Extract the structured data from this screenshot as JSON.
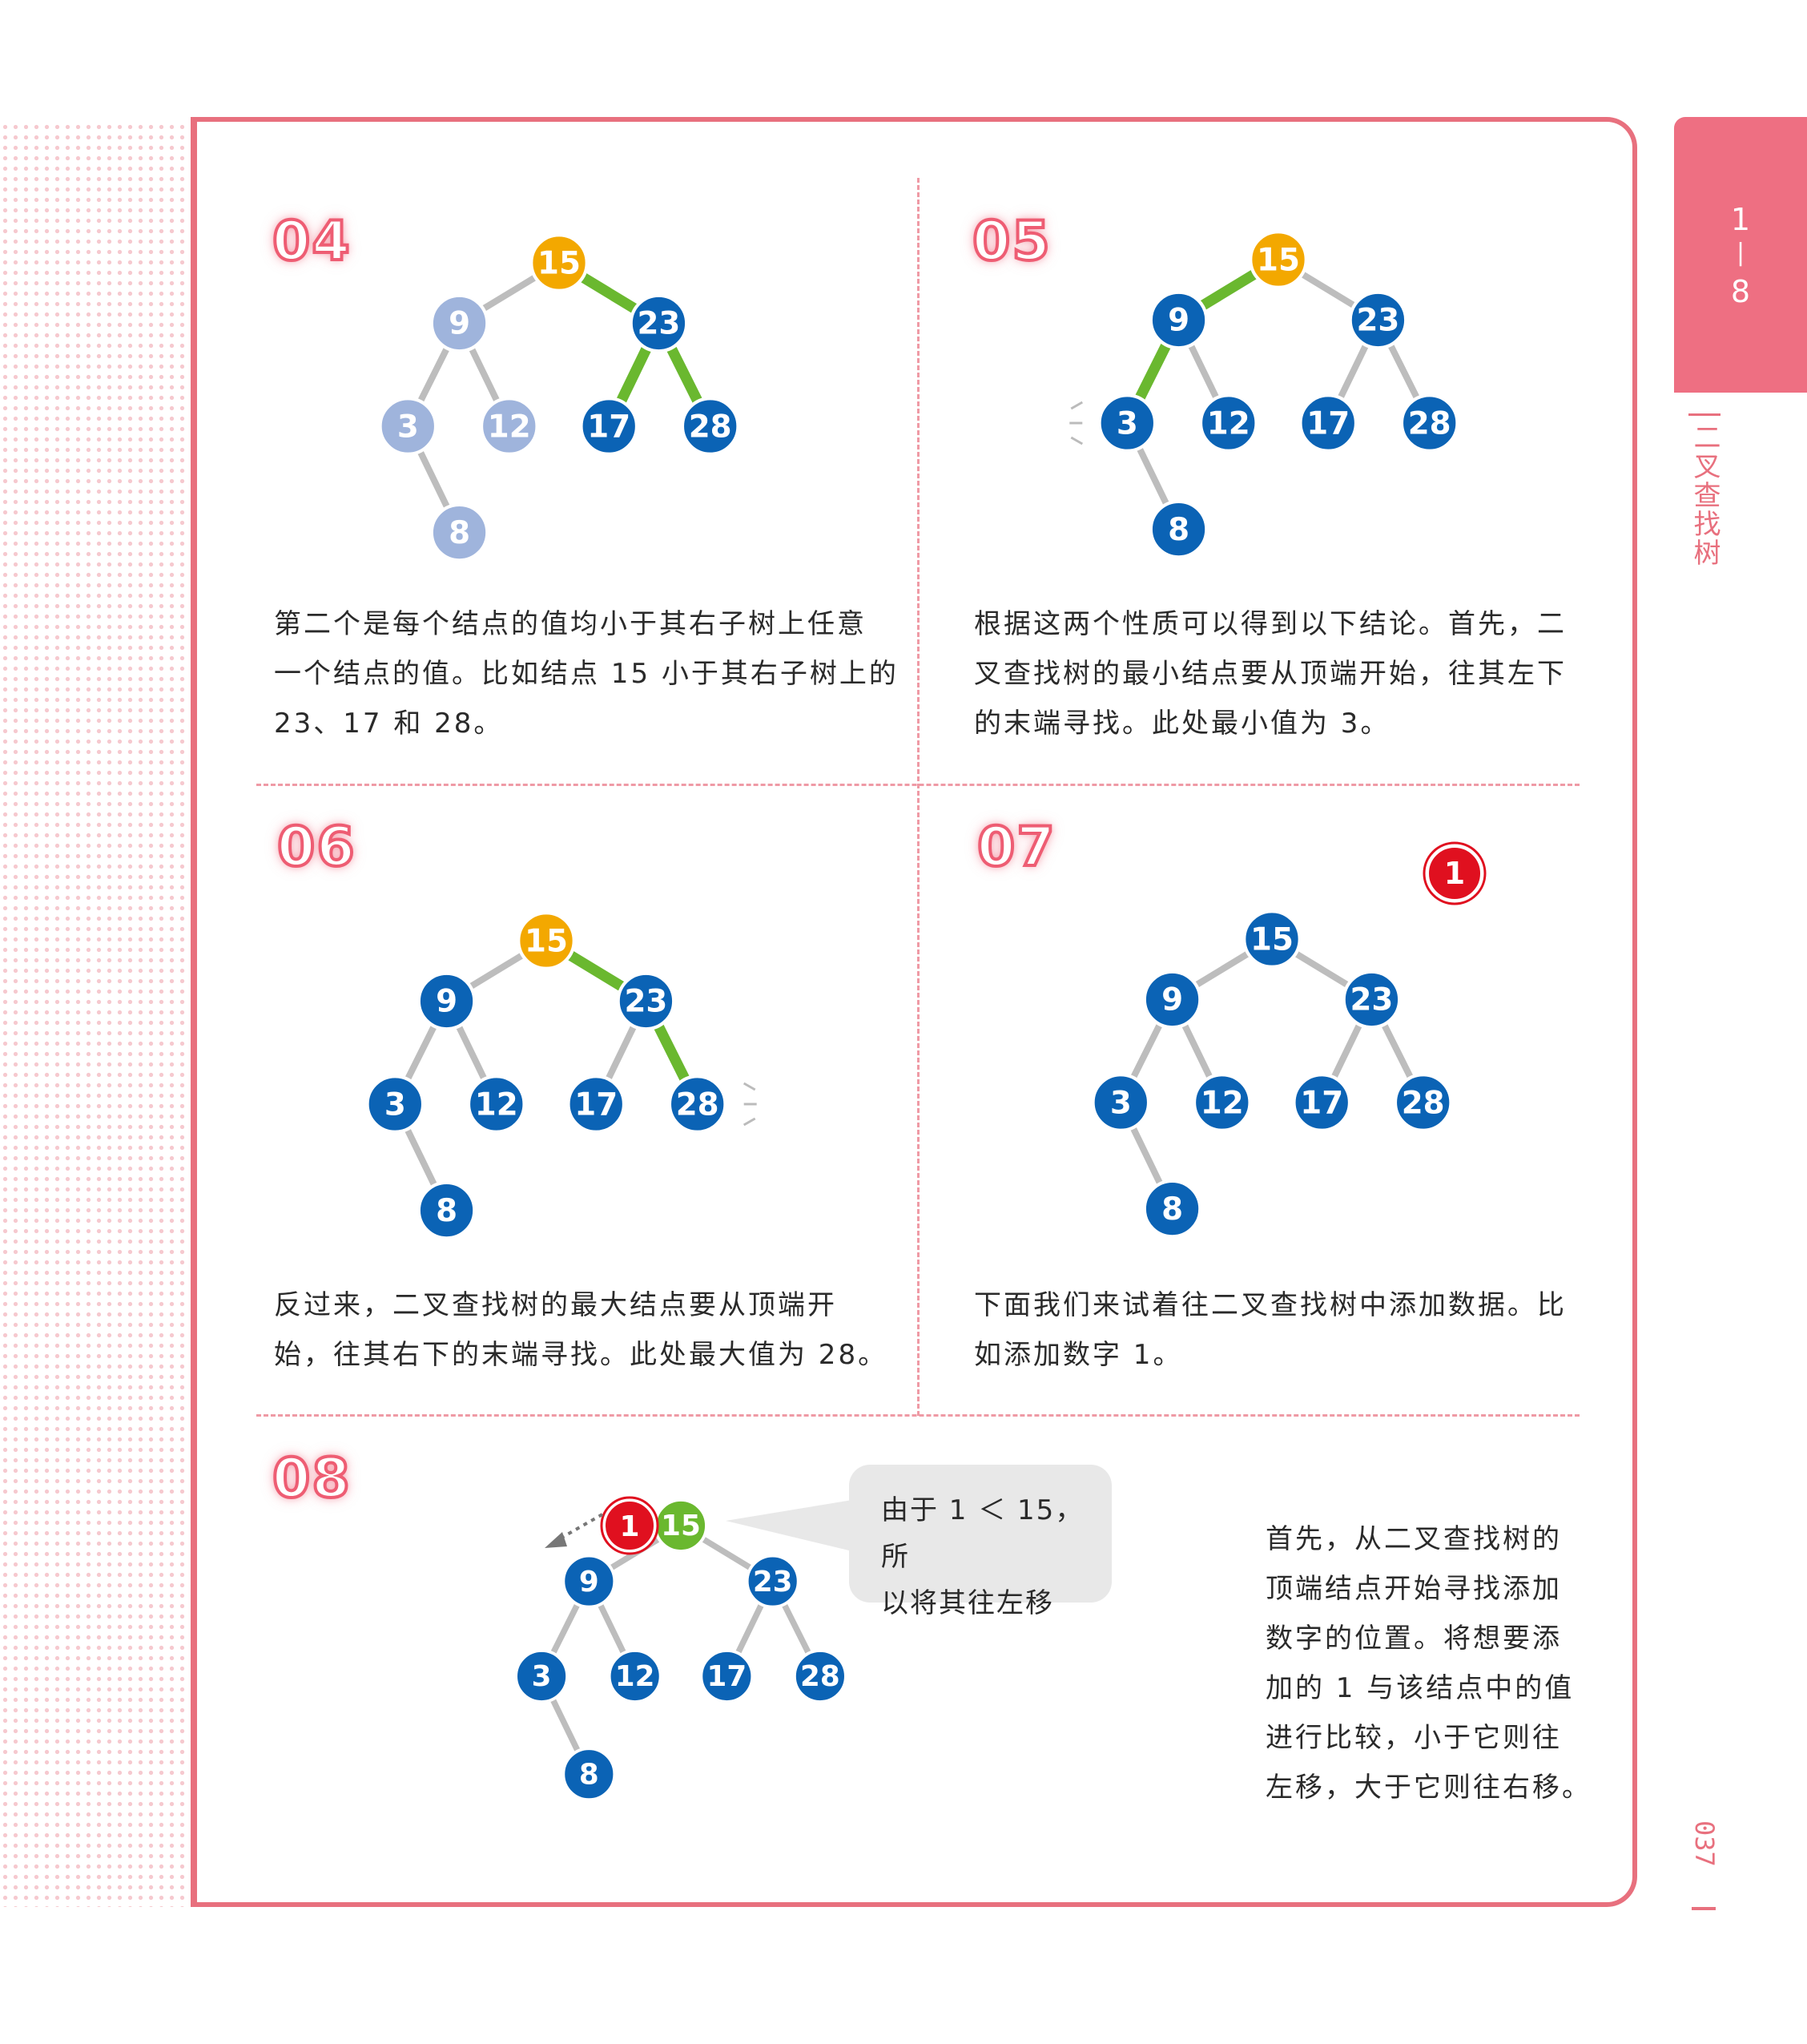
{
  "sidebar_tab": {
    "chapter_top": "1",
    "chapter_sep": "|",
    "chapter_bottom": "8"
  },
  "section_title": "二叉查找树",
  "page_number": "037",
  "colors": {
    "node_blue": "#0b63b5",
    "node_faded": "#9fb4dc",
    "node_root": "#f3a800",
    "node_new": "#e0101f",
    "node_green": "#6ab82f",
    "edge_gray": "#bdbdbd",
    "edge_green": "#6ab82f",
    "accent_pink": "#e8707e"
  },
  "panels": [
    {
      "step": "04",
      "caption_lines": [
        "第二个是每个结点的值均小于其右子树上任意",
        "一个结点的值。比如结点 15 小于其右子树上的",
        "23、17 和 28。"
      ]
    },
    {
      "step": "05",
      "caption_lines": [
        "根据这两个性质可以得到以下结论。首先，二",
        "叉查找树的最小结点要从顶端开始，往其左下",
        "的末端寻找。此处最小值为 3。"
      ]
    },
    {
      "step": "06",
      "caption_lines": [
        "反过来，二叉查找树的最大结点要从顶端开",
        "始，往其右下的末端寻找。此处最大值为 28。"
      ]
    },
    {
      "step": "07",
      "caption_lines": [
        "下面我们来试着往二叉查找树中添加数据。比",
        "如添加数字 1。"
      ],
      "new_value": "1"
    },
    {
      "step": "08",
      "caption_lines": [
        "首先，从二叉查找树的",
        "顶端结点开始寻找添加",
        "数字的位置。将想要添",
        "加的 1 与该结点中的值",
        "进行比较，小于它则往",
        "左移，大于它则往右移。"
      ],
      "bubble_lines": [
        "由于 1 ＜ 15，所",
        "以将其往左移"
      ],
      "new_value": "1"
    }
  ],
  "tree_nodes": [
    "15",
    "9",
    "23",
    "3",
    "12",
    "17",
    "28",
    "8"
  ],
  "tree_edges": [
    [
      "15",
      "9"
    ],
    [
      "15",
      "23"
    ],
    [
      "9",
      "3"
    ],
    [
      "9",
      "12"
    ],
    [
      "23",
      "17"
    ],
    [
      "23",
      "28"
    ],
    [
      "3",
      "8"
    ]
  ]
}
